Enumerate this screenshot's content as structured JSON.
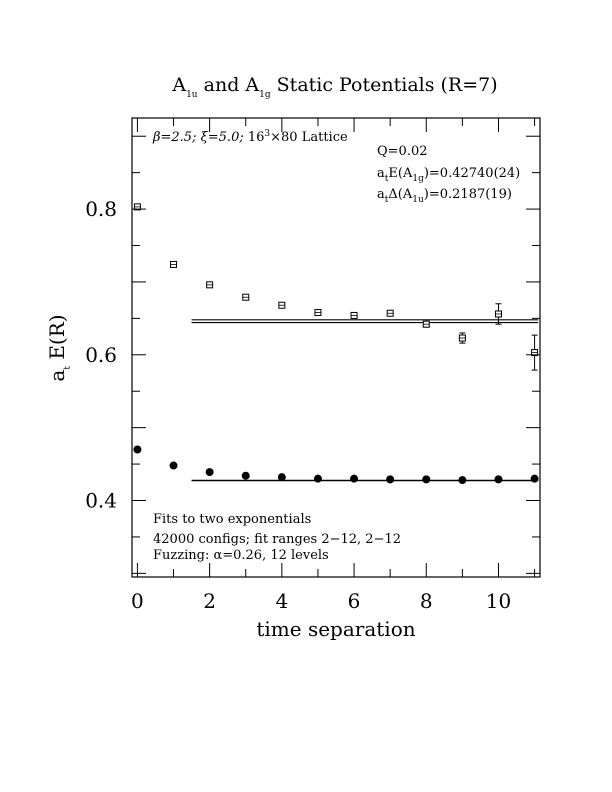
{
  "chart_data": {
    "type": "scatter",
    "title": {
      "base1": "A",
      "sub1": "1u",
      "mid": " and A",
      "sub2": "1g",
      "tail": " Static Potentials (R=7)"
    },
    "xlabel": "time separation",
    "ylabel": {
      "base": "a",
      "sub": "t",
      "tail": " E(R)"
    },
    "xlim": [
      -0.15,
      11.15
    ],
    "ylim": [
      0.295,
      0.925
    ],
    "xticks": [
      0,
      2,
      4,
      6,
      8,
      10
    ],
    "xtick_labels": [
      "0",
      "2",
      "4",
      "6",
      "8",
      "10"
    ],
    "yticks": [
      0.4,
      0.6,
      0.8
    ],
    "ytick_labels": [
      "0.4",
      "0.6",
      "0.8"
    ],
    "grid": false,
    "annotations": {
      "lattice": {
        "beta": "β=2.5; ",
        "xi": "ξ=5.0; ",
        "size_base": "16",
        "size_sup": "3",
        "size_tail": "×80 Lattice"
      },
      "q": "Q=0.02",
      "energy": {
        "base": "a",
        "sub1": "t",
        "mid": "E(A",
        "sub2": "1g",
        "tail": ")=0.42740(24)"
      },
      "delta": {
        "base": "a",
        "sub1": "t",
        "mid": "Δ(A",
        "sub2": "1u",
        "tail": ")=0.2187(19)"
      },
      "fits": "Fits to two exponentials",
      "configs": "42000 configs; fit ranges 2−12, 2−12",
      "fuzzing": "Fuzzing: α=0.26, 12 levels"
    },
    "series": [
      {
        "marker": "open-square",
        "x": [
          0,
          1,
          2,
          3,
          4,
          5,
          6,
          7,
          8,
          9,
          10,
          11
        ],
        "y": [
          0.803,
          0.724,
          0.696,
          0.679,
          0.668,
          0.658,
          0.654,
          0.657,
          0.642,
          0.623,
          0.656,
          0.603
        ],
        "err": [
          0.002,
          0.002,
          0.002,
          0.002,
          0.002,
          0.002,
          0.002,
          0.003,
          0.004,
          0.007,
          0.014,
          0.024
        ]
      },
      {
        "marker": "filled-circle",
        "x": [
          0,
          1,
          2,
          3,
          4,
          5,
          6,
          7,
          8,
          9,
          10,
          11
        ],
        "y": [
          0.47,
          0.448,
          0.439,
          0.434,
          0.432,
          0.43,
          0.43,
          0.429,
          0.429,
          0.428,
          0.429,
          0.43
        ],
        "err": [
          0.001,
          0.001,
          0.001,
          0.001,
          0.001,
          0.001,
          0.001,
          0.001,
          0.001,
          0.001,
          0.001,
          0.001
        ]
      }
    ],
    "fit_lines": {
      "upper": {
        "x_range": [
          1.5,
          11.1
        ],
        "center": 0.6461,
        "half_width": 0.0019
      },
      "lower": {
        "x_range": [
          1.5,
          11.1
        ],
        "center": 0.4274,
        "half_width": 0.00024
      }
    }
  }
}
